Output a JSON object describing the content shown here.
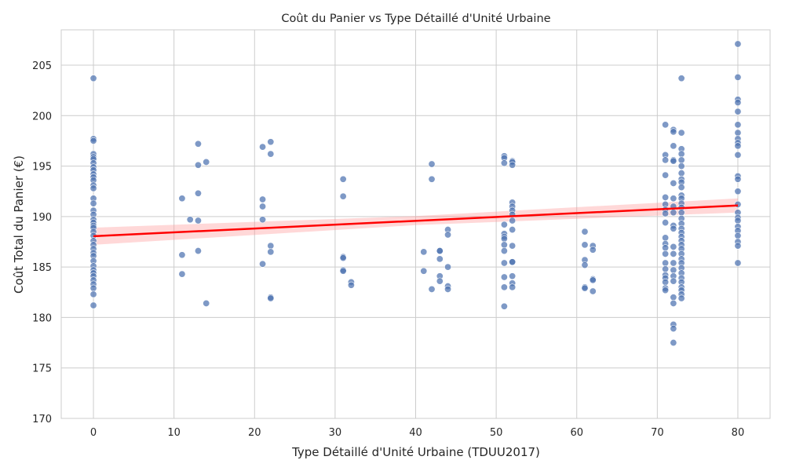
{
  "chart_data": {
    "type": "scatter",
    "title": "Coût du Panier vs Type Détaillé d'Unité Urbaine",
    "xlabel": "Type Détaillé d'Unité Urbaine (TDUU2017)",
    "ylabel": "Coût Total du Panier (€)",
    "xlim": [
      -4,
      84
    ],
    "ylim": [
      170,
      208.5
    ],
    "xticks": [
      0,
      10,
      20,
      30,
      40,
      50,
      60,
      70,
      80
    ],
    "yticks": [
      170,
      175,
      180,
      185,
      190,
      195,
      200,
      205
    ],
    "grid": true,
    "colors": {
      "points": "#4c72b0",
      "regression": "#ff0000",
      "band": "#ff9999",
      "grid": "#cccccc"
    },
    "points": [
      [
        0,
        203.7
      ],
      [
        0,
        197.7
      ],
      [
        0,
        197.5
      ],
      [
        0,
        196.2
      ],
      [
        0,
        195.9
      ],
      [
        0,
        195.7
      ],
      [
        0,
        195.3
      ],
      [
        0,
        194.9
      ],
      [
        0,
        194.6
      ],
      [
        0,
        194.2
      ],
      [
        0,
        193.9
      ],
      [
        0,
        193.6
      ],
      [
        0,
        193.1
      ],
      [
        0,
        192.8
      ],
      [
        0,
        191.8
      ],
      [
        0,
        191.3
      ],
      [
        0,
        190.6
      ],
      [
        0,
        190.2
      ],
      [
        0,
        189.7
      ],
      [
        0,
        189.4
      ],
      [
        0,
        189.1
      ],
      [
        0,
        188.9
      ],
      [
        0,
        188.5
      ],
      [
        0,
        188.1
      ],
      [
        0,
        187.6
      ],
      [
        0,
        187.2
      ],
      [
        0,
        186.8
      ],
      [
        0,
        186.4
      ],
      [
        0,
        186.1
      ],
      [
        0,
        185.6
      ],
      [
        0,
        185.1
      ],
      [
        0,
        184.7
      ],
      [
        0,
        184.4
      ],
      [
        0,
        184.1
      ],
      [
        0,
        183.7
      ],
      [
        0,
        183.3
      ],
      [
        0,
        182.9
      ],
      [
        0,
        182.3
      ],
      [
        0,
        181.2
      ],
      [
        11,
        191.8
      ],
      [
        11,
        186.2
      ],
      [
        11,
        184.3
      ],
      [
        12,
        189.7
      ],
      [
        13,
        197.2
      ],
      [
        13,
        195.1
      ],
      [
        13,
        192.3
      ],
      [
        13,
        189.6
      ],
      [
        13,
        186.6
      ],
      [
        14,
        195.4
      ],
      [
        14,
        181.4
      ],
      [
        21,
        196.9
      ],
      [
        21,
        191.7
      ],
      [
        21,
        191.0
      ],
      [
        21,
        189.7
      ],
      [
        21,
        185.3
      ],
      [
        22,
        197.4
      ],
      [
        22,
        196.2
      ],
      [
        22,
        187.1
      ],
      [
        22,
        186.5
      ],
      [
        22,
        182.0
      ],
      [
        22,
        181.9
      ],
      [
        31,
        193.7
      ],
      [
        31,
        192.0
      ],
      [
        31,
        186.0
      ],
      [
        31,
        185.9
      ],
      [
        31,
        184.7
      ],
      [
        31,
        184.6
      ],
      [
        32,
        183.5
      ],
      [
        32,
        183.2
      ],
      [
        41,
        186.5
      ],
      [
        41,
        184.6
      ],
      [
        42,
        195.2
      ],
      [
        42,
        193.7
      ],
      [
        42,
        182.8
      ],
      [
        43,
        186.6
      ],
      [
        43,
        186.6
      ],
      [
        43,
        185.8
      ],
      [
        43,
        184.1
      ],
      [
        43,
        183.6
      ],
      [
        44,
        188.7
      ],
      [
        44,
        188.2
      ],
      [
        44,
        185.0
      ],
      [
        44,
        183.1
      ],
      [
        44,
        182.8
      ],
      [
        51,
        196.0
      ],
      [
        51,
        195.8
      ],
      [
        51,
        195.3
      ],
      [
        51,
        189.2
      ],
      [
        51,
        188.3
      ],
      [
        51,
        188.0
      ],
      [
        51,
        187.8
      ],
      [
        51,
        187.2
      ],
      [
        51,
        186.6
      ],
      [
        51,
        185.4
      ],
      [
        51,
        184.0
      ],
      [
        51,
        183.0
      ],
      [
        51,
        181.1
      ],
      [
        52,
        195.5
      ],
      [
        52,
        195.4
      ],
      [
        52,
        195.1
      ],
      [
        52,
        191.4
      ],
      [
        52,
        191.0
      ],
      [
        52,
        190.6
      ],
      [
        52,
        190.2
      ],
      [
        52,
        189.6
      ],
      [
        52,
        188.7
      ],
      [
        52,
        187.1
      ],
      [
        52,
        185.5
      ],
      [
        52,
        185.5
      ],
      [
        52,
        184.1
      ],
      [
        52,
        183.4
      ],
      [
        52,
        183.0
      ],
      [
        61,
        188.5
      ],
      [
        61,
        187.2
      ],
      [
        61,
        185.7
      ],
      [
        61,
        185.2
      ],
      [
        61,
        183.0
      ],
      [
        61,
        182.9
      ],
      [
        62,
        187.1
      ],
      [
        62,
        186.7
      ],
      [
        62,
        183.8
      ],
      [
        62,
        183.7
      ],
      [
        62,
        182.6
      ],
      [
        71,
        199.1
      ],
      [
        71,
        196.1
      ],
      [
        71,
        195.6
      ],
      [
        71,
        194.1
      ],
      [
        71,
        191.9
      ],
      [
        71,
        191.2
      ],
      [
        71,
        190.7
      ],
      [
        71,
        190.3
      ],
      [
        71,
        189.4
      ],
      [
        71,
        187.9
      ],
      [
        71,
        187.3
      ],
      [
        71,
        186.9
      ],
      [
        71,
        186.3
      ],
      [
        71,
        185.4
      ],
      [
        71,
        184.8
      ],
      [
        71,
        184.2
      ],
      [
        71,
        183.9
      ],
      [
        71,
        183.5
      ],
      [
        71,
        182.9
      ],
      [
        71,
        182.7
      ],
      [
        72,
        198.6
      ],
      [
        72,
        198.4
      ],
      [
        72,
        197.0
      ],
      [
        72,
        195.6
      ],
      [
        72,
        195.5
      ],
      [
        72,
        193.3
      ],
      [
        72,
        191.8
      ],
      [
        72,
        191.0
      ],
      [
        72,
        190.4
      ],
      [
        72,
        189.1
      ],
      [
        72,
        188.8
      ],
      [
        72,
        187.0
      ],
      [
        72,
        186.3
      ],
      [
        72,
        185.4
      ],
      [
        72,
        184.7
      ],
      [
        72,
        184.1
      ],
      [
        72,
        183.6
      ],
      [
        72,
        182.0
      ],
      [
        72,
        181.4
      ],
      [
        72,
        179.3
      ],
      [
        72,
        178.9
      ],
      [
        72,
        177.5
      ],
      [
        73,
        203.7
      ],
      [
        73,
        198.3
      ],
      [
        73,
        196.7
      ],
      [
        73,
        196.2
      ],
      [
        73,
        195.6
      ],
      [
        73,
        195.0
      ],
      [
        73,
        194.3
      ],
      [
        73,
        193.7
      ],
      [
        73,
        193.4
      ],
      [
        73,
        192.9
      ],
      [
        73,
        192.1
      ],
      [
        73,
        191.8
      ],
      [
        73,
        191.3
      ],
      [
        73,
        190.9
      ],
      [
        73,
        190.4
      ],
      [
        73,
        189.8
      ],
      [
        73,
        189.3
      ],
      [
        73,
        188.8
      ],
      [
        73,
        188.4
      ],
      [
        73,
        188.0
      ],
      [
        73,
        187.6
      ],
      [
        73,
        187.2
      ],
      [
        73,
        186.8
      ],
      [
        73,
        186.3
      ],
      [
        73,
        185.8
      ],
      [
        73,
        185.4
      ],
      [
        73,
        184.9
      ],
      [
        73,
        184.4
      ],
      [
        73,
        183.9
      ],
      [
        73,
        183.5
      ],
      [
        73,
        183.0
      ],
      [
        73,
        182.7
      ],
      [
        73,
        182.3
      ],
      [
        73,
        181.9
      ],
      [
        80,
        207.1
      ],
      [
        80,
        203.8
      ],
      [
        80,
        201.6
      ],
      [
        80,
        201.3
      ],
      [
        80,
        200.4
      ],
      [
        80,
        199.1
      ],
      [
        80,
        198.3
      ],
      [
        80,
        197.7
      ],
      [
        80,
        197.3
      ],
      [
        80,
        197.0
      ],
      [
        80,
        196.1
      ],
      [
        80,
        194.0
      ],
      [
        80,
        193.7
      ],
      [
        80,
        192.5
      ],
      [
        80,
        191.2
      ],
      [
        80,
        190.4
      ],
      [
        80,
        189.9
      ],
      [
        80,
        189.6
      ],
      [
        80,
        189.0
      ],
      [
        80,
        188.6
      ],
      [
        80,
        188.1
      ],
      [
        80,
        187.5
      ],
      [
        80,
        187.1
      ],
      [
        80,
        185.4
      ]
    ],
    "regression": {
      "x": [
        0,
        80
      ],
      "y": [
        188.05,
        191.1
      ]
    },
    "confidence_band": {
      "x": [
        0,
        40,
        80
      ],
      "lower": [
        187.2,
        189.15,
        190.4
      ],
      "upper": [
        188.9,
        190.05,
        191.8
      ]
    }
  }
}
